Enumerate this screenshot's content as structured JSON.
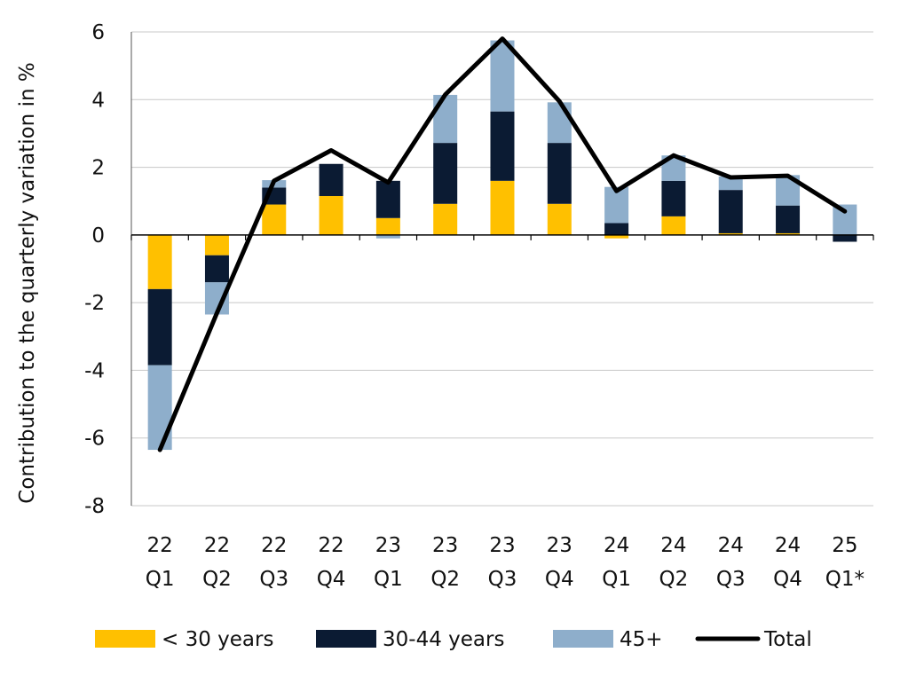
{
  "chart_data": {
    "type": "bar",
    "stacked": true,
    "title": "",
    "xlabel": "",
    "ylabel": "Contribution to the quarterly variation in %",
    "ylim": [
      -8,
      6
    ],
    "yticks": [
      6,
      4,
      2,
      0,
      -2,
      -4,
      -6,
      -8
    ],
    "ytick_labels": [
      "6",
      "4",
      "2",
      "0",
      "-2",
      "-4",
      "-6",
      "-8"
    ],
    "grid": "horizontal",
    "legend_position": "bottom",
    "categories": [
      [
        "22",
        "Q1"
      ],
      [
        "22",
        "Q2"
      ],
      [
        "22",
        "Q3"
      ],
      [
        "22",
        "Q4"
      ],
      [
        "23",
        "Q1"
      ],
      [
        "23",
        "Q2"
      ],
      [
        "23",
        "Q3"
      ],
      [
        "23",
        "Q4"
      ],
      [
        "24",
        "Q1"
      ],
      [
        "24",
        "Q2"
      ],
      [
        "24",
        "Q3"
      ],
      [
        "24",
        "Q4"
      ],
      [
        "25",
        "Q1*"
      ]
    ],
    "series": [
      {
        "name": "< 30 years",
        "kind": "bar",
        "color": "#ffc000",
        "values": [
          -1.6,
          -0.6,
          0.9,
          1.15,
          0.5,
          0.92,
          1.6,
          0.92,
          -0.1,
          0.55,
          0.05,
          0.05,
          0.0
        ]
      },
      {
        "name": "30-44 years",
        "kind": "bar",
        "color": "#0b1b33",
        "values": [
          -2.25,
          -0.8,
          0.5,
          0.95,
          1.1,
          1.8,
          2.05,
          1.8,
          0.35,
          1.05,
          1.28,
          0.82,
          -0.2
        ]
      },
      {
        "name": "45+",
        "kind": "bar",
        "color": "#8eaecb",
        "values": [
          -2.5,
          -0.95,
          0.22,
          0.0,
          -0.1,
          1.42,
          2.1,
          1.2,
          1.07,
          0.75,
          0.4,
          0.9,
          0.9
        ]
      },
      {
        "name": "Total",
        "kind": "line",
        "color": "#000000",
        "values": [
          -6.35,
          -2.3,
          1.6,
          2.5,
          1.55,
          4.15,
          5.8,
          3.95,
          1.3,
          2.35,
          1.7,
          1.75,
          0.7
        ]
      }
    ]
  }
}
